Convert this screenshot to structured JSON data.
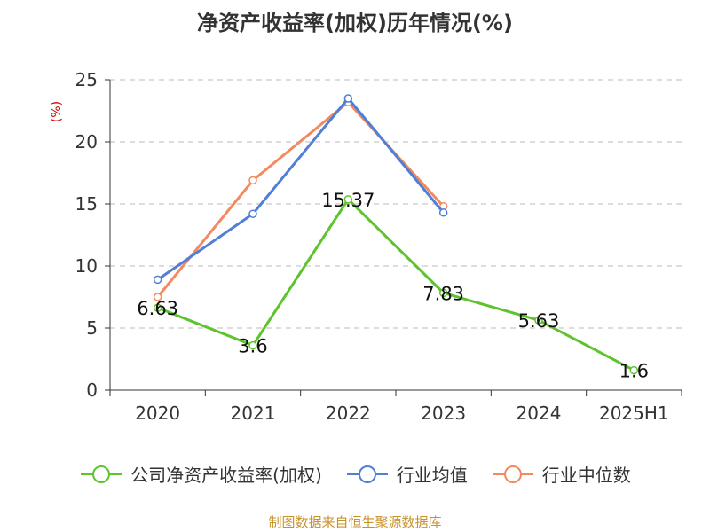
{
  "title": "净资产收益率(加权)历年情况(%)",
  "source": "制图数据来自恒生聚源数据库",
  "chart_data": {
    "type": "line",
    "ylabel": "(%)",
    "xlabel": "",
    "categories": [
      "2020",
      "2021",
      "2022",
      "2023",
      "2024",
      "2025H1"
    ],
    "ylim": [
      0,
      25
    ],
    "yticks": [
      0,
      5,
      10,
      15,
      20,
      25
    ],
    "grid": true,
    "legend_position": "bottom",
    "series": [
      {
        "name": "公司净资产收益率(加权)",
        "color": "#5dc42e",
        "values": [
          6.63,
          3.6,
          15.37,
          7.83,
          5.63,
          1.6
        ],
        "labels": [
          "6.63",
          "3.6",
          "15.37",
          "7.83",
          "5.63",
          "1.6"
        ]
      },
      {
        "name": "行业均值",
        "color": "#4f7fd6",
        "values": [
          8.9,
          14.2,
          23.5,
          14.3,
          null,
          null
        ]
      },
      {
        "name": "行业中位数",
        "color": "#f4895f",
        "values": [
          7.5,
          16.9,
          23.2,
          14.8,
          null,
          null
        ]
      }
    ]
  }
}
